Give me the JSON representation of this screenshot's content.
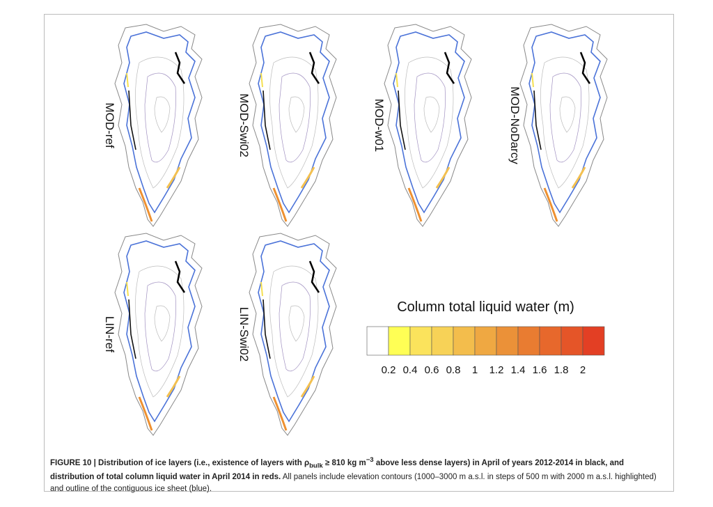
{
  "panels": [
    {
      "label": "MOD-ref"
    },
    {
      "label": "MOD-Swi02"
    },
    {
      "label": "MOD-w01"
    },
    {
      "label": "MOD-NoDarcy"
    },
    {
      "label": "LIN-ref"
    },
    {
      "label": "LIN-Swi02"
    }
  ],
  "colorbar": {
    "title": "Column total liquid water (m)",
    "colors": [
      "#ffffff",
      "#ffff55",
      "#fbe35c",
      "#f7d257",
      "#f3bd4c",
      "#efa842",
      "#eb9138",
      "#e97c31",
      "#e7682c",
      "#e55528",
      "#e33f24"
    ],
    "ticks": [
      0.2,
      0.4,
      0.6,
      0.8,
      1,
      1.2,
      1.4,
      1.6,
      1.8,
      2
    ]
  },
  "caption": {
    "bold1": "FIGURE 10 | Distribution of ice layers (i.e., existence of layers with ρ",
    "sub": "bulk",
    "bold2": " ≥ 810 kg m",
    "sup": "−3",
    "bold3": " above less dense layers) in April of years 2012-2014 in black, and distribution of total column liquid water in April 2014 in reds.",
    "regular": " All panels include elevation contours (1000–3000 m a.s.l. in steps of 500 m with 2000 m a.s.l. highlighted) and outline of the contiguous ice sheet (blue)."
  }
}
